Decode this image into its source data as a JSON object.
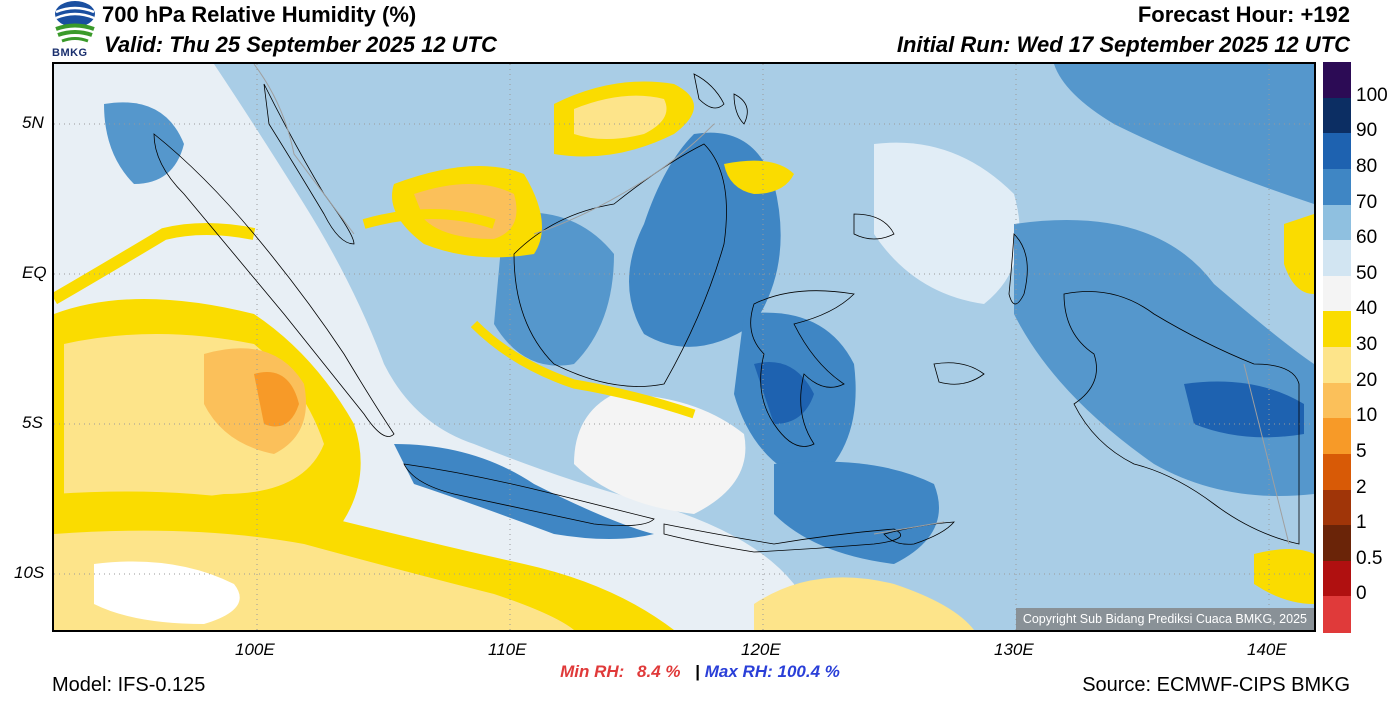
{
  "header": {
    "title": "700 hPa Relative Humidity (%)",
    "valid": "Valid: Thu 25 September 2025 12 UTC",
    "forecast_hour": "Forecast Hour: +192",
    "initial_run": "Initial Run: Wed 17 September 2025 12 UTC"
  },
  "logo": {
    "text": "BMKG",
    "icon": "bmkg-logo-icon"
  },
  "axes": {
    "lat_ticks": [
      "5N",
      "EQ",
      "5S",
      "10S"
    ],
    "lon_ticks": [
      "100E",
      "110E",
      "120E",
      "130E",
      "140E"
    ]
  },
  "colorbar": {
    "labels": [
      "100",
      "90",
      "80",
      "70",
      "60",
      "50",
      "40",
      "30",
      "20",
      "10",
      "5",
      "2",
      "1",
      "0.5",
      "0"
    ],
    "colors": [
      "#2c0b55",
      "#0c2e63",
      "#1e62b0",
      "#3f86c4",
      "#8fc0e0",
      "#d2e5f2",
      "#f4f4f4",
      "#fadc00",
      "#fde48a",
      "#fbc05a",
      "#f79a28",
      "#d85a06",
      "#a03508",
      "#6a2408",
      "#b01010",
      "#e03a3a"
    ]
  },
  "stats": {
    "min_label": "Min RH:",
    "min_value": "8.4 %",
    "separator": "|",
    "max_label": "Max RH:",
    "max_value": "100.4 %"
  },
  "footer": {
    "model": "Model: IFS-0.125",
    "source": "Source: ECMWF-CIPS BMKG",
    "copyright": "Copyright Sub Bidang Prediksi Cuaca BMKG, 2025"
  }
}
